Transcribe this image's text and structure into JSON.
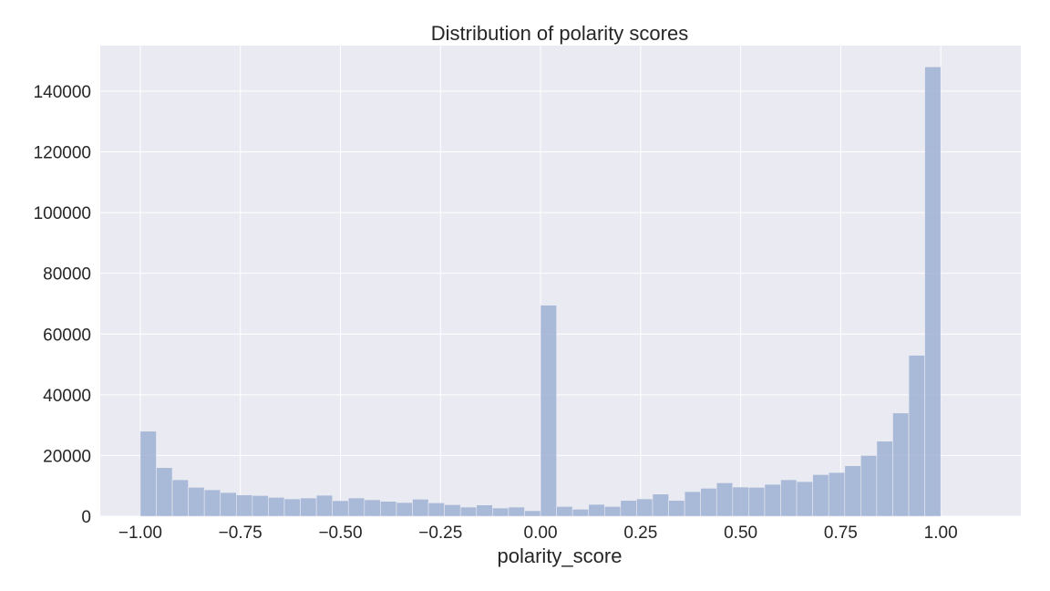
{
  "chart_data": {
    "type": "bar",
    "title": "Distribution of polarity scores",
    "xlabel": "polarity_score",
    "ylabel": "",
    "xlim": [
      -1.1,
      1.2
    ],
    "ylim": [
      0,
      155000
    ],
    "grid": true,
    "bins": {
      "start": -1.0,
      "end": 1.0,
      "count": 50
    },
    "x_ticks": [
      -1.0,
      -0.75,
      -0.5,
      -0.25,
      0.0,
      0.25,
      0.5,
      0.75,
      1.0
    ],
    "x_tick_labels": [
      "−1.00",
      "−0.75",
      "−0.50",
      "−0.25",
      "0.00",
      "0.25",
      "0.50",
      "0.75",
      "1.00"
    ],
    "y_ticks": [
      0,
      20000,
      40000,
      60000,
      80000,
      100000,
      120000,
      140000
    ],
    "y_tick_labels": [
      "0",
      "20000",
      "40000",
      "60000",
      "80000",
      "100000",
      "120000",
      "140000"
    ],
    "values": [
      28000,
      16000,
      12000,
      9500,
      8700,
      7800,
      7000,
      6800,
      6200,
      5700,
      6000,
      6900,
      5100,
      6000,
      5400,
      4900,
      4500,
      5600,
      4400,
      3800,
      3000,
      3700,
      2700,
      3000,
      1800,
      69500,
      3200,
      2300,
      3900,
      3200,
      5200,
      5700,
      7300,
      5200,
      8100,
      9200,
      11000,
      9600,
      9500,
      10500,
      12000,
      11400,
      13700,
      14400,
      16600,
      20000,
      24700,
      34000,
      53000,
      148000
    ],
    "bar_color": "#9eb0d3"
  }
}
